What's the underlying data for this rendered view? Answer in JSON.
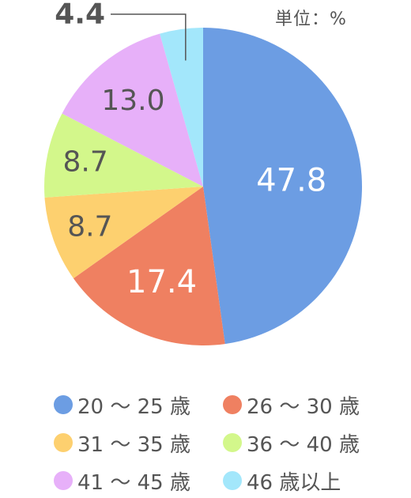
{
  "unit_label": "単位：%",
  "chart_data": {
    "type": "pie",
    "start": "12 o'clock",
    "direction": "clockwise",
    "slices": [
      {
        "label": "20 〜 25 歳",
        "value": 47.8,
        "display": "47.8",
        "color": "#6C9DE3",
        "label_color": "#ffffff"
      },
      {
        "label": "26 〜 30 歳",
        "value": 17.4,
        "display": "17.4",
        "color": "#EF8061",
        "label_color": "#ffffff"
      },
      {
        "label": "31 〜 35 歳",
        "value": 8.7,
        "display": "8.7",
        "color": "#FDD06F",
        "label_color": "#555555"
      },
      {
        "label": "36 〜 40 歳",
        "value": 8.7,
        "display": "8.7",
        "color": "#D3F78B",
        "label_color": "#555555"
      },
      {
        "label": "41 〜 45 歳",
        "value": 13.0,
        "display": "13.0",
        "color": "#E7B0F9",
        "label_color": "#555555"
      },
      {
        "label": "46 歳以上",
        "value": 4.4,
        "display": "4.4",
        "color": "#A3E7FB",
        "label_color": "#555555"
      }
    ],
    "legend_placement": "bottom"
  }
}
